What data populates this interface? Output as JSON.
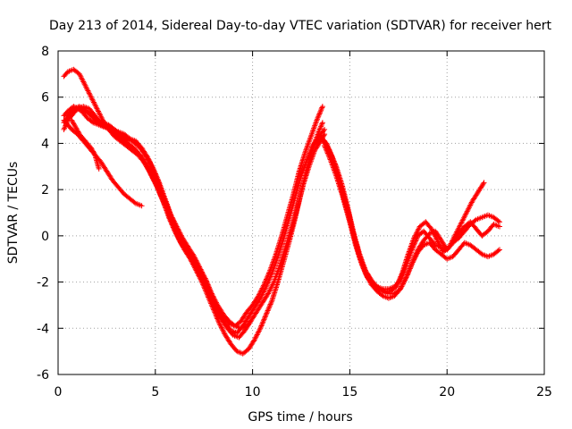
{
  "chart_data": {
    "type": "scatter",
    "title": "Day 213 of 2014, Sidereal Day-to-day VTEC variation (SDTVAR) for receiver hert",
    "xlabel": "GPS time / hours",
    "ylabel": "SDTVAR / TECUs",
    "xlim": [
      0,
      25
    ],
    "ylim": [
      -6,
      8
    ],
    "xticks": [
      0,
      5,
      10,
      15,
      20,
      25
    ],
    "yticks": [
      -6,
      -4,
      -2,
      0,
      2,
      4,
      6,
      8
    ],
    "xtick_labels": [
      "0",
      "5",
      "10",
      "15",
      "20",
      "25"
    ],
    "ytick_labels": [
      "-6",
      "-4",
      "-2",
      "0",
      "2",
      "4",
      "6",
      "8"
    ],
    "grid": true,
    "marker": "+",
    "color": "#ff0000",
    "series": [
      {
        "name": "trace-1",
        "x": [
          0.3,
          0.5,
          0.8,
          1.0,
          1.3,
          1.6,
          1.9,
          2.2,
          2.5,
          2.8,
          3.1,
          3.4,
          3.7,
          4.0,
          4.3,
          4.6,
          4.9,
          5.2,
          5.5,
          5.8,
          6.1,
          6.4,
          6.7,
          7.0,
          7.3,
          7.6,
          7.9,
          8.2,
          8.5,
          8.8,
          9.1,
          9.4,
          9.7,
          10.0,
          10.3,
          10.6,
          10.9,
          11.2,
          11.5,
          11.8,
          12.1,
          12.4,
          12.7,
          13.0,
          13.3,
          13.6
        ],
        "y": [
          4.6,
          5.0,
          5.3,
          5.5,
          5.5,
          5.3,
          5.0,
          4.8,
          4.7,
          4.6,
          4.5,
          4.4,
          4.2,
          4.1,
          3.8,
          3.4,
          2.9,
          2.3,
          1.6,
          0.9,
          0.3,
          -0.2,
          -0.6,
          -1.0,
          -1.5,
          -2.0,
          -2.6,
          -3.1,
          -3.5,
          -3.8,
          -3.9,
          -3.7,
          -3.3,
          -3.0,
          -2.6,
          -2.1,
          -1.5,
          -0.8,
          0.0,
          0.9,
          1.8,
          2.8,
          3.6,
          4.3,
          5.0,
          5.6
        ]
      },
      {
        "name": "trace-2",
        "x": [
          0.3,
          0.5,
          0.8,
          1.1,
          1.4,
          1.7,
          2.0,
          2.3,
          2.6,
          2.9,
          3.2,
          3.5,
          3.8,
          4.1,
          4.4,
          4.7,
          5.0,
          5.3,
          5.6,
          5.9,
          6.2,
          6.5,
          6.8,
          7.1,
          7.4,
          7.7,
          8.0,
          8.3,
          8.6,
          8.9,
          9.2,
          9.5,
          9.8,
          10.1,
          10.4,
          10.7,
          11.0,
          11.3,
          11.6,
          11.9,
          12.2,
          12.5,
          12.8,
          13.1,
          13.4,
          13.7
        ],
        "y": [
          4.9,
          5.2,
          5.5,
          5.6,
          5.4,
          5.2,
          5.0,
          4.9,
          4.8,
          4.6,
          4.4,
          4.2,
          4.1,
          3.9,
          3.6,
          3.2,
          2.6,
          2.0,
          1.3,
          0.6,
          0.0,
          -0.5,
          -0.9,
          -1.3,
          -1.8,
          -2.4,
          -2.9,
          -3.4,
          -3.8,
          -4.1,
          -4.2,
          -3.9,
          -3.5,
          -3.1,
          -2.7,
          -2.2,
          -1.6,
          -0.9,
          -0.1,
          0.8,
          1.7,
          2.6,
          3.3,
          3.9,
          4.3,
          4.6
        ]
      },
      {
        "name": "trace-3",
        "x": [
          0.3,
          0.5,
          0.8,
          1.2,
          1.5,
          1.8,
          2.1,
          2.4,
          2.7,
          3.0,
          3.3,
          3.6,
          3.9,
          4.2,
          4.5,
          4.8,
          5.1,
          5.4,
          5.7,
          6.0,
          6.3,
          6.6,
          6.9,
          7.2,
          7.5,
          7.8,
          8.1,
          8.4,
          8.7,
          9.0,
          9.3,
          9.6,
          9.9,
          10.2,
          10.5,
          10.8,
          11.1,
          11.4,
          11.7,
          12.0,
          12.3,
          12.6,
          12.9,
          13.2,
          13.5,
          13.7
        ],
        "y": [
          5.2,
          5.4,
          5.6,
          5.4,
          5.1,
          4.9,
          4.8,
          4.7,
          4.6,
          4.4,
          4.2,
          4.0,
          3.8,
          3.5,
          3.1,
          2.6,
          2.1,
          1.5,
          0.8,
          0.2,
          -0.3,
          -0.7,
          -1.1,
          -1.6,
          -2.1,
          -2.6,
          -3.2,
          -3.6,
          -4.0,
          -4.3,
          -4.4,
          -4.1,
          -3.7,
          -3.3,
          -2.9,
          -2.5,
          -2.0,
          -1.3,
          -0.5,
          0.3,
          1.2,
          2.2,
          3.0,
          3.7,
          4.1,
          4.4
        ]
      },
      {
        "name": "trace-4",
        "x": [
          0.3,
          0.5,
          0.8,
          1.1,
          1.4,
          1.7,
          2.0,
          2.3,
          2.6,
          2.9,
          3.2,
          3.5,
          3.8,
          4.1,
          4.4,
          4.7,
          5.0,
          5.3,
          5.6,
          5.9,
          6.2,
          6.5,
          6.8,
          7.1,
          7.4,
          7.7,
          8.0,
          8.3,
          8.6,
          8.9,
          9.2,
          9.5,
          9.8,
          10.1,
          10.4,
          10.7,
          11.0,
          11.3,
          11.6,
          11.9,
          12.2,
          12.5,
          12.8,
          13.1,
          13.4,
          13.6
        ],
        "y": [
          6.9,
          7.1,
          7.2,
          7.0,
          6.5,
          6.0,
          5.5,
          5.0,
          4.6,
          4.3,
          4.1,
          3.9,
          3.7,
          3.5,
          3.2,
          2.8,
          2.3,
          1.7,
          1.1,
          0.5,
          -0.1,
          -0.6,
          -1.0,
          -1.5,
          -2.0,
          -2.6,
          -3.2,
          -3.8,
          -4.3,
          -4.7,
          -5.0,
          -5.1,
          -4.9,
          -4.5,
          -4.0,
          -3.4,
          -2.8,
          -2.0,
          -1.1,
          -0.2,
          0.8,
          1.9,
          2.9,
          3.8,
          4.5,
          4.9
        ]
      },
      {
        "name": "trace-5",
        "x": [
          0.3,
          0.5,
          0.7,
          1.0,
          1.3,
          1.6,
          1.9,
          2.2,
          2.5,
          2.8,
          3.1,
          3.4,
          3.7,
          4.0,
          4.3
        ],
        "y": [
          5.0,
          4.8,
          4.6,
          4.4,
          4.1,
          3.8,
          3.5,
          3.2,
          2.8,
          2.4,
          2.1,
          1.8,
          1.6,
          1.4,
          1.3
        ]
      },
      {
        "name": "trace-6",
        "x": [
          0.7,
          0.9,
          1.1,
          1.3,
          1.5,
          1.7,
          1.9,
          2.0,
          2.1
        ],
        "y": [
          5.0,
          4.7,
          4.4,
          4.2,
          4.0,
          3.8,
          3.5,
          3.2,
          2.9
        ]
      },
      {
        "name": "trace-7",
        "x": [
          0.5,
          0.7,
          1.0,
          1.3,
          1.6,
          1.9,
          2.2,
          2.5,
          2.8,
          3.1,
          3.4,
          3.7,
          4.0,
          4.3,
          4.6,
          4.9,
          5.2,
          5.5,
          5.8,
          6.1,
          6.4,
          6.7,
          7.0,
          7.3,
          7.6,
          7.9,
          8.2,
          8.5,
          8.8,
          9.1,
          9.4,
          9.7,
          9.9
        ],
        "y": [
          5.2,
          5.4,
          5.5,
          5.6,
          5.5,
          5.2,
          4.9,
          4.7,
          4.5,
          4.3,
          4.1,
          3.9,
          3.7,
          3.4,
          3.0,
          2.6,
          2.1,
          1.5,
          0.9,
          0.4,
          -0.1,
          -0.5,
          -0.9,
          -1.4,
          -1.9,
          -2.5,
          -3.0,
          -3.4,
          -3.7,
          -3.9,
          -4.0,
          -3.9,
          -3.7
        ]
      },
      {
        "name": "trace-8",
        "x": [
          13.3,
          13.5,
          13.7,
          14.0,
          14.3,
          14.6,
          14.9,
          15.2,
          15.5,
          15.8,
          16.1,
          16.4,
          16.7,
          17.0,
          17.3,
          17.6,
          17.9,
          18.2,
          18.5,
          18.8,
          19.1,
          19.4,
          19.7,
          20.0,
          20.3,
          20.6,
          20.9,
          21.2,
          21.5,
          21.8,
          22.1,
          22.4,
          22.7
        ],
        "y": [
          4.0,
          4.2,
          4.1,
          3.6,
          3.0,
          2.2,
          1.2,
          0.1,
          -0.8,
          -1.5,
          -2.0,
          -2.2,
          -2.3,
          -2.3,
          -2.2,
          -1.9,
          -1.3,
          -0.6,
          0.0,
          0.2,
          -0.1,
          -0.4,
          -0.5,
          -0.6,
          -0.3,
          -0.1,
          0.2,
          0.5,
          0.7,
          0.8,
          0.9,
          0.8,
          0.6
        ]
      },
      {
        "name": "trace-9",
        "x": [
          13.6,
          13.8,
          14.0,
          14.3,
          14.6,
          14.9,
          15.2,
          15.5,
          15.8,
          16.1,
          16.4,
          16.7,
          17.0,
          17.3,
          17.6,
          17.9,
          18.2,
          18.5,
          18.8,
          19.1,
          19.4,
          19.7,
          20.0,
          20.3,
          20.6,
          20.9,
          21.2,
          21.5,
          21.8,
          22.1,
          22.4,
          22.7
        ],
        "y": [
          4.1,
          3.9,
          3.5,
          2.8,
          2.0,
          1.1,
          0.1,
          -0.8,
          -1.5,
          -1.9,
          -2.2,
          -2.4,
          -2.5,
          -2.5,
          -2.3,
          -1.8,
          -1.2,
          -0.7,
          -0.4,
          -0.3,
          -0.6,
          -0.8,
          -1.0,
          -0.9,
          -0.6,
          -0.3,
          -0.4,
          -0.6,
          -0.8,
          -0.9,
          -0.8,
          -0.6
        ]
      },
      {
        "name": "trace-10",
        "x": [
          13.7,
          14.0,
          14.3,
          14.6,
          14.9,
          15.2,
          15.5,
          15.8,
          16.1,
          16.4,
          16.7,
          17.0,
          17.3,
          17.6,
          17.9,
          18.2,
          18.5,
          18.8,
          19.1,
          19.4,
          19.7,
          20.0,
          20.3,
          20.6,
          20.9,
          21.2,
          21.5,
          21.8,
          22.1,
          22.4,
          22.7
        ],
        "y": [
          3.9,
          3.3,
          2.6,
          1.8,
          0.9,
          0.0,
          -0.9,
          -1.6,
          -2.1,
          -2.4,
          -2.6,
          -2.7,
          -2.6,
          -2.3,
          -1.8,
          -1.2,
          -0.6,
          -0.2,
          0.1,
          0.2,
          -0.2,
          -0.6,
          -0.3,
          0.1,
          0.4,
          0.6,
          0.3,
          0.0,
          0.2,
          0.5,
          0.4
        ]
      },
      {
        "name": "trace-11",
        "x": [
          13.5,
          13.8,
          14.1,
          14.4,
          14.7,
          15.0,
          15.3,
          15.6,
          15.9,
          16.2,
          16.5,
          16.8,
          17.1,
          17.4,
          17.7,
          18.0,
          18.3,
          18.6,
          18.9,
          19.2,
          19.5,
          19.8,
          20.1,
          20.4,
          20.7,
          21.0,
          21.3,
          21.6,
          21.9
        ],
        "y": [
          4.3,
          4.0,
          3.4,
          2.6,
          1.6,
          0.6,
          -0.4,
          -1.2,
          -1.8,
          -2.1,
          -2.3,
          -2.4,
          -2.4,
          -2.2,
          -1.6,
          -0.8,
          -0.1,
          0.4,
          0.6,
          0.3,
          -0.2,
          -0.7,
          -0.5,
          0.0,
          0.5,
          1.0,
          1.5,
          1.9,
          2.3
        ]
      }
    ]
  }
}
